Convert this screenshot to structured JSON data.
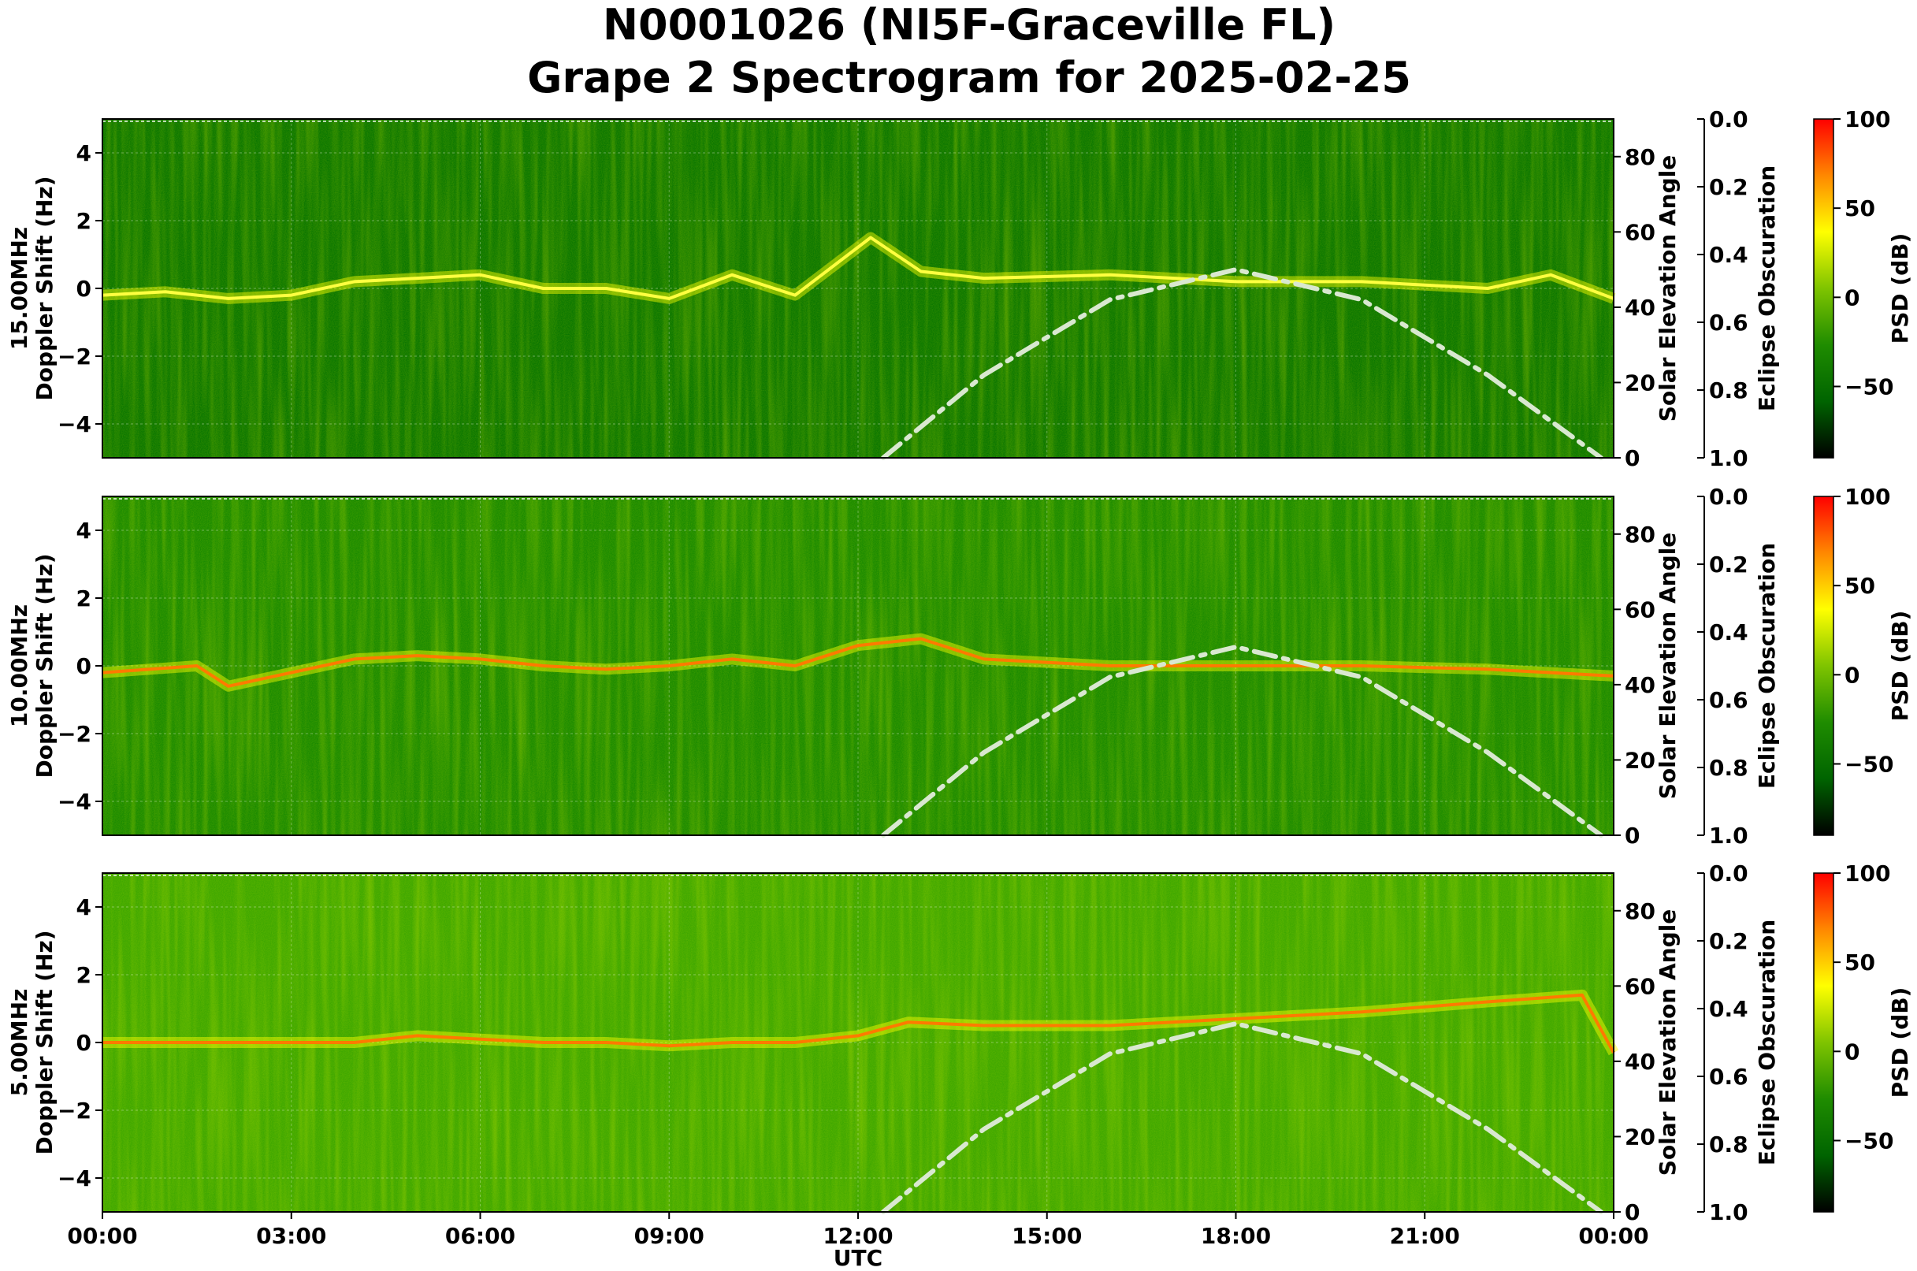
{
  "figure": {
    "title_line1": "N0001026 (NI5F-Graceville FL)",
    "title_line2": "Grape 2 Spectrogram for 2025-02-25"
  },
  "chart_data": {
    "type": "heatmap",
    "xlabel": "UTC",
    "x_ticks": [
      "00:00",
      "03:00",
      "06:00",
      "09:00",
      "12:00",
      "15:00",
      "18:00",
      "21:00",
      "00:00"
    ],
    "x_range_hours": [
      0,
      24
    ],
    "ylabel_suffix": "Doppler Shift (Hz)",
    "ylim": [
      -5,
      5
    ],
    "y_ticks": [
      4,
      2,
      0,
      -2,
      -4
    ],
    "right_axis": {
      "label": "Solar Elevation Angle",
      "ylim": [
        0,
        90
      ],
      "ticks": [
        80,
        60,
        40,
        20,
        0
      ]
    },
    "eclipse_axis": {
      "label": "Eclipse Obscuration",
      "ylim": [
        1.0,
        0.0
      ],
      "ticks": [
        "0.0",
        "0.2",
        "0.4",
        "0.6",
        "0.8",
        "1.0"
      ]
    },
    "colorbar": {
      "label": "PSD (dB)",
      "range": [
        -90,
        100
      ],
      "ticks": [
        "100",
        "50",
        "0",
        "−50"
      ],
      "colors": [
        "#000000",
        "#006400",
        "#1f8c00",
        "#7fc400",
        "#ffff00",
        "#ff8800",
        "#ff0000"
      ]
    },
    "solar_elevation": {
      "style": "dash-dot",
      "color": "#d9e8d0",
      "points": [
        [
          12.4,
          0
        ],
        [
          14,
          22
        ],
        [
          16,
          42
        ],
        [
          18,
          50
        ],
        [
          20,
          42
        ],
        [
          22,
          22
        ],
        [
          23.8,
          0
        ]
      ]
    },
    "panels": [
      {
        "frequency_label": "15.00MHz",
        "background": "#0a7600",
        "doppler_trace": [
          [
            0,
            -0.2
          ],
          [
            1,
            -0.1
          ],
          [
            2,
            -0.3
          ],
          [
            3,
            -0.2
          ],
          [
            4,
            0.2
          ],
          [
            5,
            0.3
          ],
          [
            6,
            0.4
          ],
          [
            7,
            0.0
          ],
          [
            8,
            0.0
          ],
          [
            9,
            -0.3
          ],
          [
            10,
            0.4
          ],
          [
            11,
            -0.2
          ],
          [
            12.2,
            1.5
          ],
          [
            13,
            0.5
          ],
          [
            14,
            0.3
          ],
          [
            16,
            0.4
          ],
          [
            18,
            0.2
          ],
          [
            20,
            0.2
          ],
          [
            22,
            0.0
          ],
          [
            23,
            0.4
          ],
          [
            24,
            -0.3
          ]
        ]
      },
      {
        "frequency_label": "10.00MHz",
        "background": "#1a8a00",
        "doppler_trace": [
          [
            0,
            -0.2
          ],
          [
            1.5,
            0.0
          ],
          [
            2,
            -0.6
          ],
          [
            3,
            -0.2
          ],
          [
            4,
            0.2
          ],
          [
            5,
            0.3
          ],
          [
            6,
            0.2
          ],
          [
            7,
            0.0
          ],
          [
            8,
            -0.1
          ],
          [
            9,
            0.0
          ],
          [
            10,
            0.2
          ],
          [
            11,
            0.0
          ],
          [
            12,
            0.6
          ],
          [
            13,
            0.8
          ],
          [
            14,
            0.2
          ],
          [
            16,
            0.0
          ],
          [
            18,
            0.0
          ],
          [
            20,
            0.0
          ],
          [
            22,
            -0.1
          ],
          [
            23,
            -0.2
          ],
          [
            24,
            -0.3
          ]
        ]
      },
      {
        "frequency_label": "5.00MHz",
        "background": "#3ea700",
        "doppler_trace": [
          [
            0,
            0.0
          ],
          [
            2,
            0.0
          ],
          [
            4,
            0.0
          ],
          [
            5,
            0.2
          ],
          [
            6,
            0.1
          ],
          [
            7,
            0.0
          ],
          [
            8,
            0.0
          ],
          [
            9,
            -0.1
          ],
          [
            10,
            0.0
          ],
          [
            11,
            0.0
          ],
          [
            12,
            0.2
          ],
          [
            12.8,
            0.6
          ],
          [
            14,
            0.5
          ],
          [
            16,
            0.5
          ],
          [
            18,
            0.7
          ],
          [
            20,
            0.9
          ],
          [
            22,
            1.2
          ],
          [
            23.5,
            1.4
          ],
          [
            24,
            -0.3
          ]
        ]
      }
    ]
  }
}
